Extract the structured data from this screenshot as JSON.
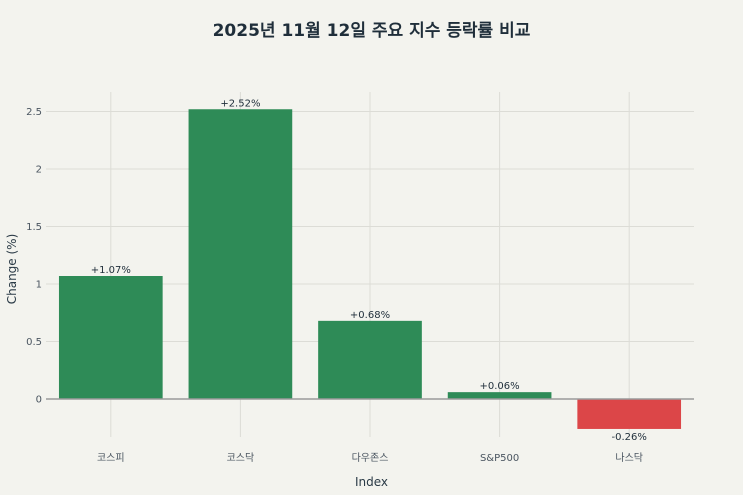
{
  "chart_data": {
    "type": "bar",
    "title": "2025년 11월 12일 주요 지수 등락률 비교",
    "xlabel": "Index",
    "ylabel": "Change (%)",
    "categories": [
      "코스피",
      "코스닥",
      "다우존스",
      "S&P500",
      "나스닥"
    ],
    "values": [
      1.07,
      2.52,
      0.68,
      0.06,
      -0.26
    ],
    "data_labels": [
      "+1.07%",
      "+2.52%",
      "+0.68%",
      "+0.06%",
      "-0.26%"
    ],
    "yticks": [
      0,
      0.5,
      1,
      1.5,
      2,
      2.5
    ],
    "ytick_labels": [
      "0",
      "0.5",
      "1",
      "1.5",
      "2",
      "2.5"
    ],
    "ylim": [
      -0.33,
      2.67
    ],
    "grid": true,
    "colors": {
      "positive": "#2e8b57",
      "negative": "#dc4648",
      "grid": "#dcdcd6",
      "zero_line": "#9a9a9a",
      "background": "#f3f3ee"
    }
  }
}
